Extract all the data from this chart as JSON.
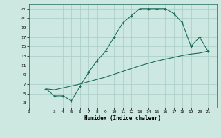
{
  "xlabel": "Humidex (Indice chaleur)",
  "background_color": "#cce8e0",
  "grid_color": "#a8ccc4",
  "line_color": "#1a6b5a",
  "marker_color": "#1a6b5a",
  "line1_x": [
    2,
    3,
    4,
    5,
    6,
    7,
    8,
    9,
    10,
    11,
    12,
    13,
    14,
    15,
    16,
    17,
    18,
    19,
    20,
    21
  ],
  "line1_y": [
    6,
    4.5,
    4.5,
    3.5,
    6.5,
    9.5,
    12,
    14,
    17,
    20,
    21.5,
    23,
    23,
    23,
    23,
    22,
    20,
    15,
    17,
    14
  ],
  "line2_x": [
    2,
    3,
    4,
    5,
    6,
    7,
    8,
    9,
    10,
    11,
    12,
    13,
    14,
    15,
    16,
    17,
    18,
    19,
    20,
    21
  ],
  "line2_y": [
    6,
    5.8,
    6.2,
    6.6,
    7.0,
    7.5,
    8.0,
    8.5,
    9.1,
    9.7,
    10.3,
    10.9,
    11.4,
    11.9,
    12.3,
    12.7,
    13.1,
    13.4,
    13.6,
    14.0
  ],
  "xlim": [
    0,
    22
  ],
  "ylim": [
    2,
    24
  ],
  "xticks": [
    0,
    3,
    4,
    5,
    6,
    7,
    8,
    9,
    10,
    11,
    12,
    13,
    14,
    15,
    16,
    17,
    18,
    19,
    20,
    21
  ],
  "yticks": [
    3,
    5,
    7,
    9,
    11,
    13,
    15,
    17,
    19,
    21,
    23
  ]
}
